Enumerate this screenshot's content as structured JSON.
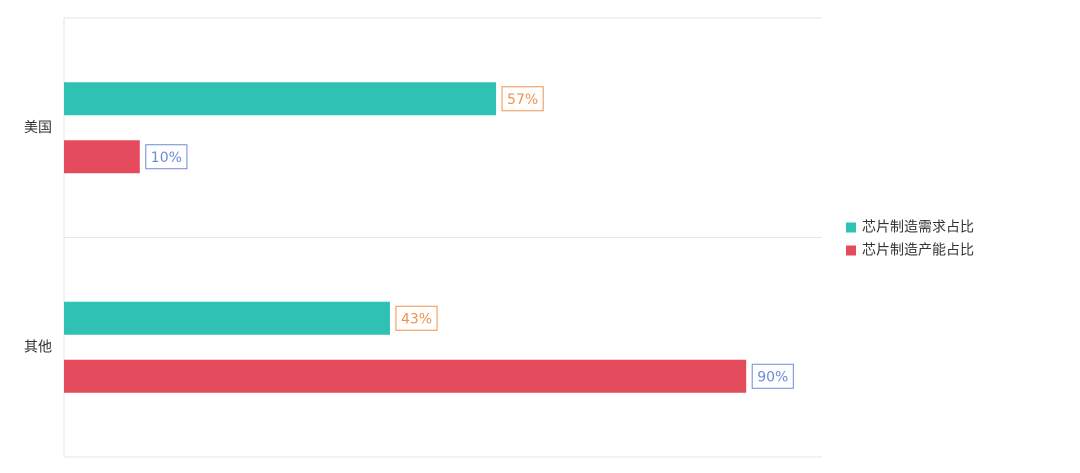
{
  "chart_data": {
    "type": "hbar",
    "categories": [
      "美国",
      "其他"
    ],
    "series": [
      {
        "name": "芯片制造需求占比",
        "color": "#2ec1b4",
        "label_color": "#f0924a",
        "values": [
          57,
          43
        ],
        "value_labels": [
          "57%",
          "43%"
        ]
      },
      {
        "name": "芯片制造产能占比",
        "color": "#e44b5c",
        "label_color": "#6a8ad8",
        "values": [
          10,
          90
        ],
        "value_labels": [
          "10%",
          "90%"
        ]
      }
    ],
    "xlim": [
      0,
      100
    ],
    "legend": "right"
  }
}
